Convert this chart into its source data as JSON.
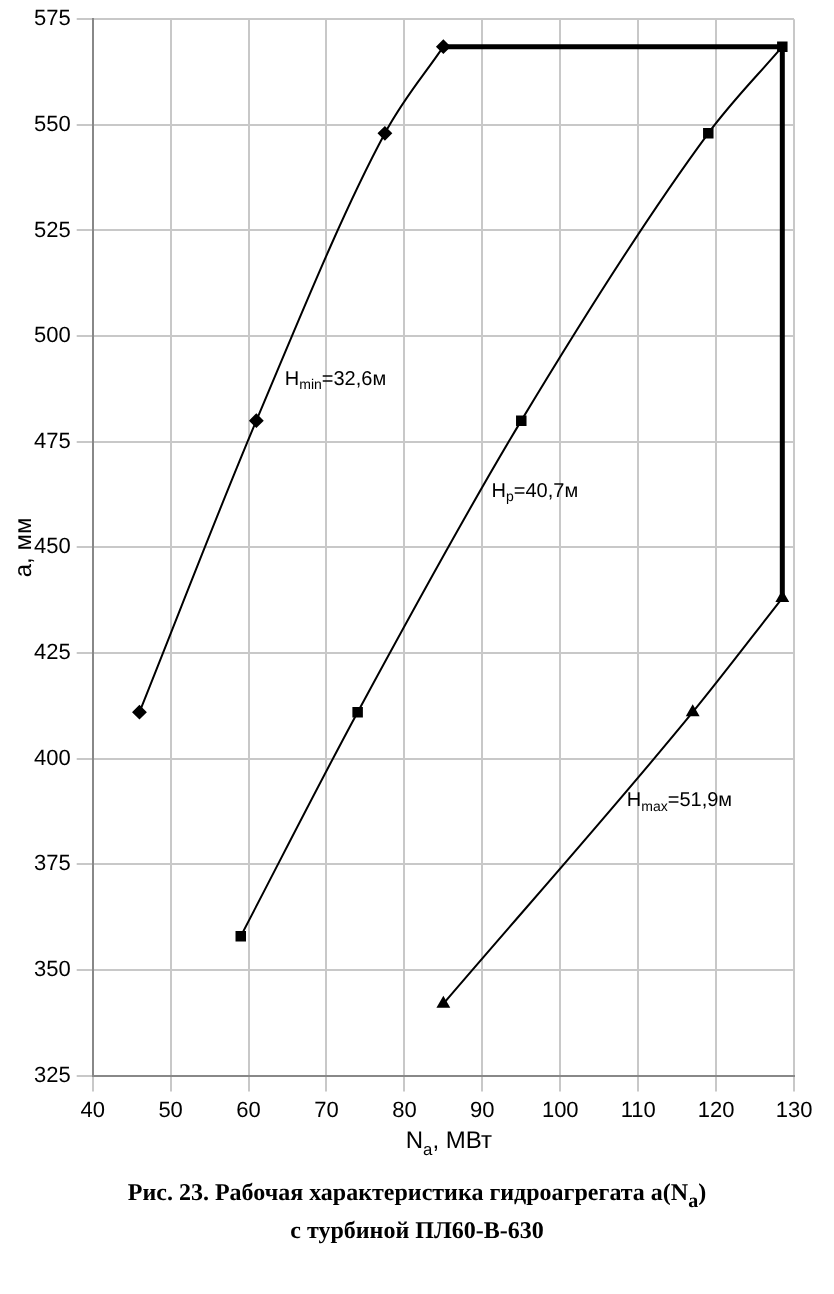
{
  "chart_data": {
    "type": "line",
    "title": "Рис. 23. Рабочая характеристика гидроагрегата  a(N$_{a}$)",
    "subtitle": "с турбиной ПЛ60-В-630",
    "xlabel": "N$_{a}$, МВт",
    "ylabel": "a, мм",
    "series": [
      {
        "name": "H$_{min}$=32,6м",
        "color": "#000000",
        "marker": "diamond",
        "x": [
          46,
          61,
          77.5,
          85
        ],
        "values": [
          411,
          480,
          548,
          568.5
        ]
      },
      {
        "name": "H$_{p}$=40,7м",
        "color": "#000000",
        "marker": "square",
        "x": [
          59,
          74,
          95,
          119,
          128.5
        ],
        "values": [
          358,
          411,
          480,
          548,
          568.5
        ]
      },
      {
        "name": "H$_{max}$=51,9м",
        "color": "#000000",
        "marker": "triangle",
        "x": [
          85,
          117,
          128.5
        ],
        "values": [
          342,
          411,
          438
        ]
      },
      {
        "color": "#000000",
        "marker": "none",
        "line_style": "solid",
        "x": [
          85,
          128.5,
          128.5
        ],
        "values": [
          568.5,
          568.5,
          438
        ]
      }
    ],
    "xlim": [
      40,
      130
    ],
    "xticks": [
      40,
      50,
      60,
      70,
      80,
      90,
      100,
      110,
      120,
      130
    ],
    "ylim": [
      325,
      575
    ],
    "yticks": [
      325,
      350,
      375,
      400,
      425,
      450,
      475,
      500,
      525,
      550,
      575
    ],
    "grid": true,
    "legend": false
  }
}
